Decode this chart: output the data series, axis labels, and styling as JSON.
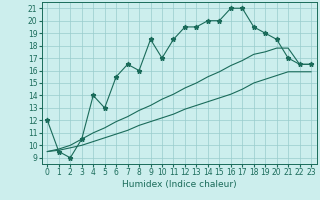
{
  "xlabel": "Humidex (Indice chaleur)",
  "x_values": [
    0,
    1,
    2,
    3,
    4,
    5,
    6,
    7,
    8,
    9,
    10,
    11,
    12,
    13,
    14,
    15,
    16,
    17,
    18,
    19,
    20,
    21,
    22,
    23
  ],
  "line1_y": [
    12,
    9.5,
    9,
    10.5,
    14,
    13,
    15.5,
    16.5,
    16,
    18.5,
    17,
    18.5,
    19.5,
    19.5,
    20,
    20,
    21,
    21,
    19.5,
    19,
    18.5,
    17,
    16.5,
    16.5
  ],
  "line2_y": [
    9.5,
    9.7,
    10.0,
    10.5,
    11.0,
    11.4,
    11.9,
    12.3,
    12.8,
    13.2,
    13.7,
    14.1,
    14.6,
    15.0,
    15.5,
    15.9,
    16.4,
    16.8,
    17.3,
    17.5,
    17.8,
    17.8,
    16.5,
    16.5
  ],
  "line3_y": [
    9.5,
    9.6,
    9.8,
    10.0,
    10.3,
    10.6,
    10.9,
    11.2,
    11.6,
    11.9,
    12.2,
    12.5,
    12.9,
    13.2,
    13.5,
    13.8,
    14.1,
    14.5,
    15.0,
    15.3,
    15.6,
    15.9,
    15.9,
    15.9
  ],
  "color": "#1a6b5a",
  "bg_color": "#cceeed",
  "grid_color": "#99cccc",
  "ylim": [
    8.5,
    21.5
  ],
  "xlim": [
    -0.5,
    23.5
  ],
  "yticks": [
    9,
    10,
    11,
    12,
    13,
    14,
    15,
    16,
    17,
    18,
    19,
    20,
    21
  ],
  "xticks": [
    0,
    1,
    2,
    3,
    4,
    5,
    6,
    7,
    8,
    9,
    10,
    11,
    12,
    13,
    14,
    15,
    16,
    17,
    18,
    19,
    20,
    21,
    22,
    23
  ],
  "marker": "*",
  "markersize": 3.5,
  "tick_fontsize": 5.5,
  "xlabel_fontsize": 6.5
}
